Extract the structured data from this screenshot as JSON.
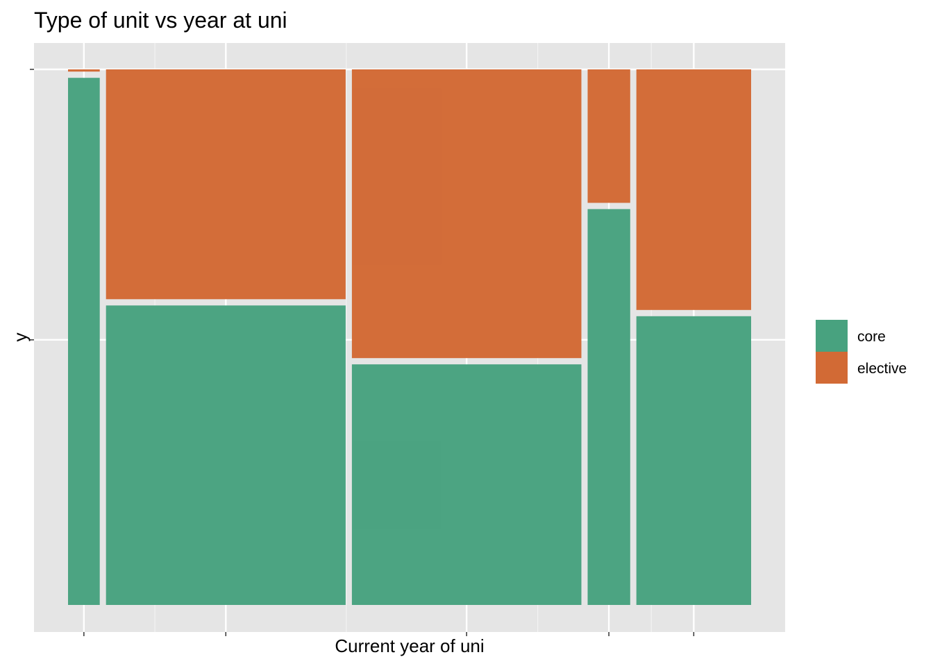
{
  "chart_data": {
    "type": "mosaic",
    "title": "Type of unit vs year at uni",
    "xlabel": "Current year of uni",
    "ylabel": "y",
    "grid": true,
    "legend_position": "right",
    "legend": [
      {
        "label": "core",
        "color": "#48A27F"
      },
      {
        "label": "elective",
        "color": "#D26A35"
      }
    ],
    "x_tick_labels": [],
    "y_tick_labels": [],
    "columns": [
      {
        "width_share": 0.047,
        "segments": [
          {
            "category": "core",
            "proportion": 0.99
          },
          {
            "category": "elective",
            "proportion": 0.01
          }
        ]
      },
      {
        "width_share": 0.355,
        "segments": [
          {
            "category": "core",
            "proportion": 0.565
          },
          {
            "category": "elective",
            "proportion": 0.435
          }
        ]
      },
      {
        "width_share": 0.34,
        "segments": [
          {
            "category": "core",
            "proportion": 0.455
          },
          {
            "category": "elective",
            "proportion": 0.545
          }
        ]
      },
      {
        "width_share": 0.063,
        "segments": [
          {
            "category": "core",
            "proportion": 0.745
          },
          {
            "category": "elective",
            "proportion": 0.255
          }
        ]
      },
      {
        "width_share": 0.17,
        "segments": [
          {
            "category": "core",
            "proportion": 0.545
          },
          {
            "category": "elective",
            "proportion": 0.455
          }
        ]
      }
    ]
  }
}
